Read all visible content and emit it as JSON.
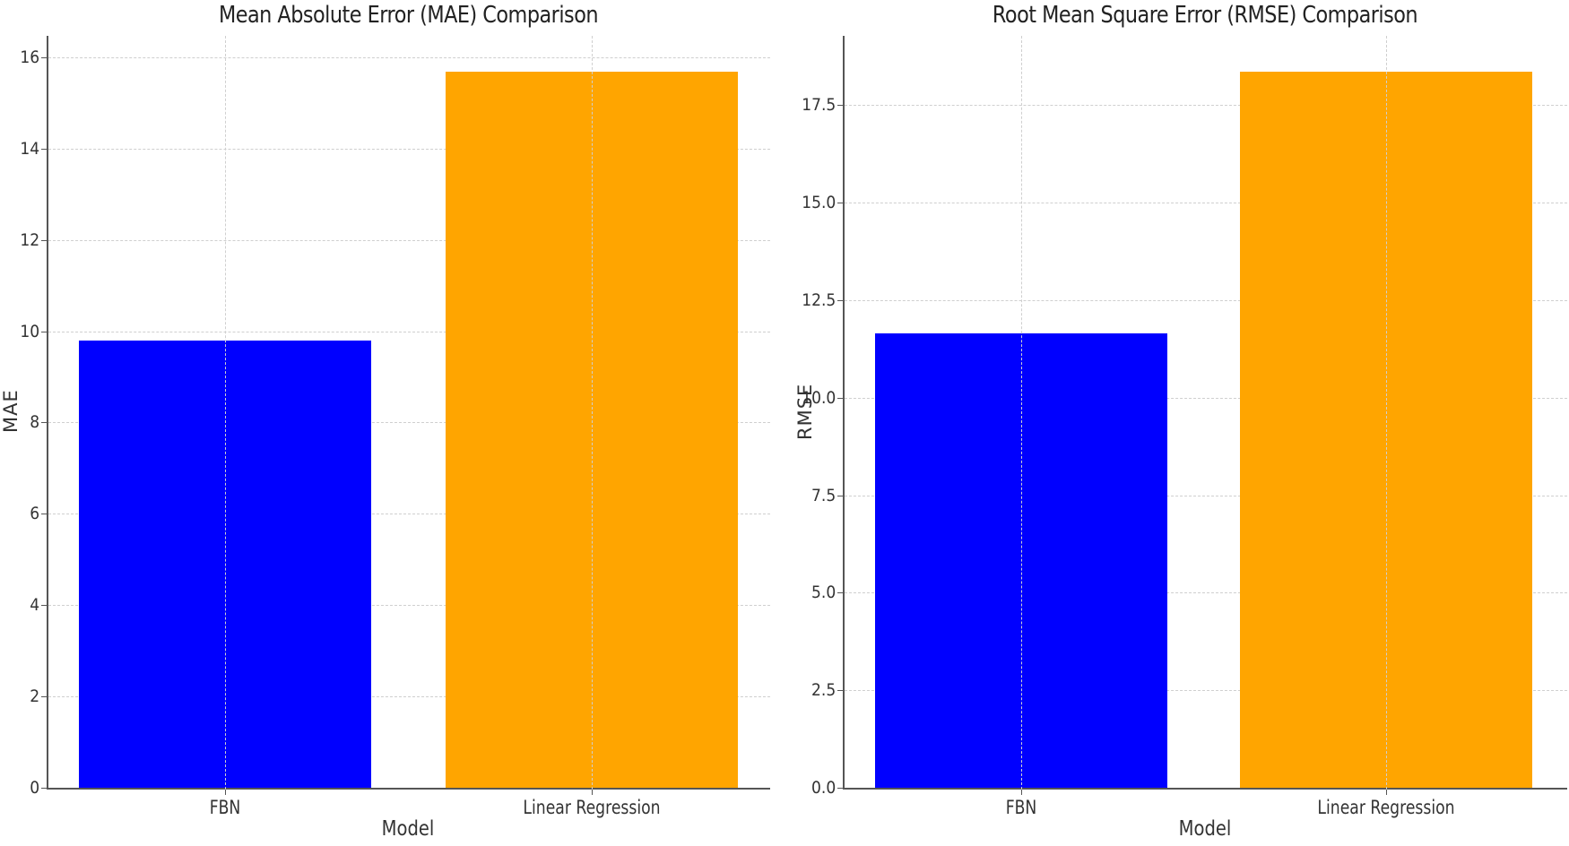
{
  "chart_data": [
    {
      "type": "bar",
      "title": "Mean Absolute Error (MAE) Comparison",
      "xlabel": "Model",
      "ylabel": "MAE",
      "categories": [
        "FBN",
        "Linear Regression"
      ],
      "values": [
        9.79,
        15.69
      ],
      "colors": [
        "#0000ff",
        "#ffa500"
      ],
      "ylim": [
        0,
        16.5
      ],
      "yticks": [
        "0",
        "2",
        "4",
        "6",
        "8",
        "10",
        "12",
        "14",
        "16"
      ],
      "grid": true
    },
    {
      "type": "bar",
      "title": "Root Mean Square Error (RMSE) Comparison",
      "xlabel": "Model",
      "ylabel": "RMSE",
      "categories": [
        "FBN",
        "Linear Regression"
      ],
      "values": [
        11.64,
        18.37
      ],
      "colors": [
        "#0000ff",
        "#ffa500"
      ],
      "ylim": [
        0,
        19.3
      ],
      "yticks": [
        "0.0",
        "2.5",
        "5.0",
        "7.5",
        "10.0",
        "12.5",
        "15.0",
        "17.5"
      ],
      "grid": true
    }
  ],
  "mae": {
    "title": "Mean Absolute Error (MAE) Comparison",
    "xlabel": "Model",
    "ylabel": "MAE",
    "categories": [
      "FBN",
      "Linear Regression"
    ],
    "yticks": [
      "0",
      "2",
      "4",
      "6",
      "8",
      "10",
      "12",
      "14",
      "16"
    ]
  },
  "rmse": {
    "title": "Root Mean Square Error (RMSE) Comparison",
    "xlabel": "Model",
    "ylabel": "RMSE",
    "categories": [
      "FBN",
      "Linear Regression"
    ],
    "yticks": [
      "0.0",
      "2.5",
      "5.0",
      "7.5",
      "10.0",
      "12.5",
      "15.0",
      "17.5"
    ]
  }
}
